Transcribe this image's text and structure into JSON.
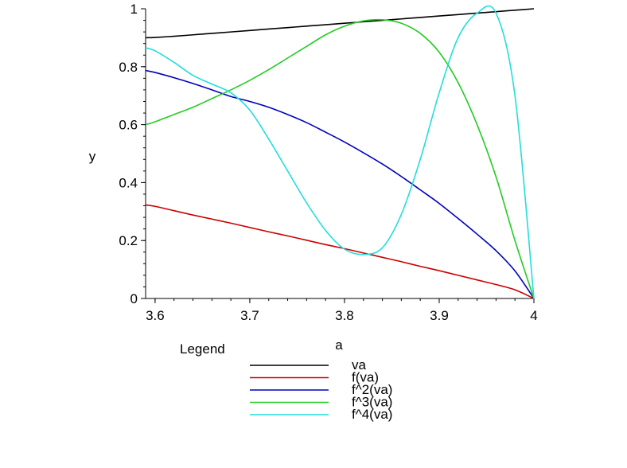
{
  "chart_data": {
    "type": "line",
    "xlabel": "a",
    "ylabel": "y",
    "xlim": [
      3.59,
      4.0
    ],
    "ylim": [
      0,
      1
    ],
    "grid": false,
    "legend_title": "Legend",
    "legend_placement": "bottom",
    "x_ticks": [
      "3.6",
      "3.7",
      "3.8",
      "3.9",
      "4"
    ],
    "y_ticks": [
      "0",
      "0.2",
      "0.4",
      "0.6",
      "0.8",
      "1"
    ],
    "x_tick_values": [
      3.6,
      3.7,
      3.8,
      3.9,
      4.0
    ],
    "y_tick_values": [
      0,
      0.2,
      0.4,
      0.6,
      0.8,
      1
    ],
    "x": [
      3.59,
      3.6,
      3.62,
      3.64,
      3.66,
      3.68,
      3.7,
      3.72,
      3.74,
      3.76,
      3.78,
      3.8,
      3.82,
      3.84,
      3.86,
      3.88,
      3.9,
      3.92,
      3.94,
      3.96,
      3.98,
      4.0
    ],
    "series": [
      {
        "name": "va",
        "color": "#000000",
        "values": [
          0.9,
          0.901,
          0.905,
          0.91,
          0.915,
          0.92,
          0.925,
          0.93,
          0.935,
          0.94,
          0.945,
          0.95,
          0.955,
          0.96,
          0.965,
          0.97,
          0.975,
          0.98,
          0.985,
          0.99,
          0.995,
          1.0
        ]
      },
      {
        "name": "f(va)",
        "color": "#cc0000",
        "values": [
          0.323,
          0.318,
          0.303,
          0.288,
          0.274,
          0.26,
          0.245,
          0.23,
          0.216,
          0.201,
          0.186,
          0.172,
          0.157,
          0.142,
          0.127,
          0.111,
          0.096,
          0.08,
          0.064,
          0.048,
          0.03,
          0.0
        ]
      },
      {
        "name": "f^2(va)",
        "color": "#0000bb",
        "values": [
          0.787,
          0.78,
          0.762,
          0.742,
          0.72,
          0.697,
          0.68,
          0.66,
          0.635,
          0.607,
          0.574,
          0.54,
          0.503,
          0.464,
          0.421,
          0.375,
          0.328,
          0.276,
          0.222,
          0.165,
          0.095,
          0.0
        ]
      },
      {
        "name": "f^3(va)",
        "color": "#22cc22",
        "values": [
          0.6,
          0.61,
          0.635,
          0.66,
          0.69,
          0.72,
          0.753,
          0.79,
          0.83,
          0.87,
          0.91,
          0.94,
          0.958,
          0.962,
          0.95,
          0.915,
          0.85,
          0.745,
          0.6,
          0.42,
          0.2,
          0.0
        ]
      },
      {
        "name": "f^4(va)",
        "color": "#22dddd",
        "values": [
          0.865,
          0.855,
          0.815,
          0.77,
          0.74,
          0.71,
          0.65,
          0.55,
          0.44,
          0.33,
          0.235,
          0.17,
          0.152,
          0.175,
          0.29,
          0.48,
          0.71,
          0.9,
          0.985,
          0.985,
          0.7,
          0.0
        ]
      }
    ]
  }
}
